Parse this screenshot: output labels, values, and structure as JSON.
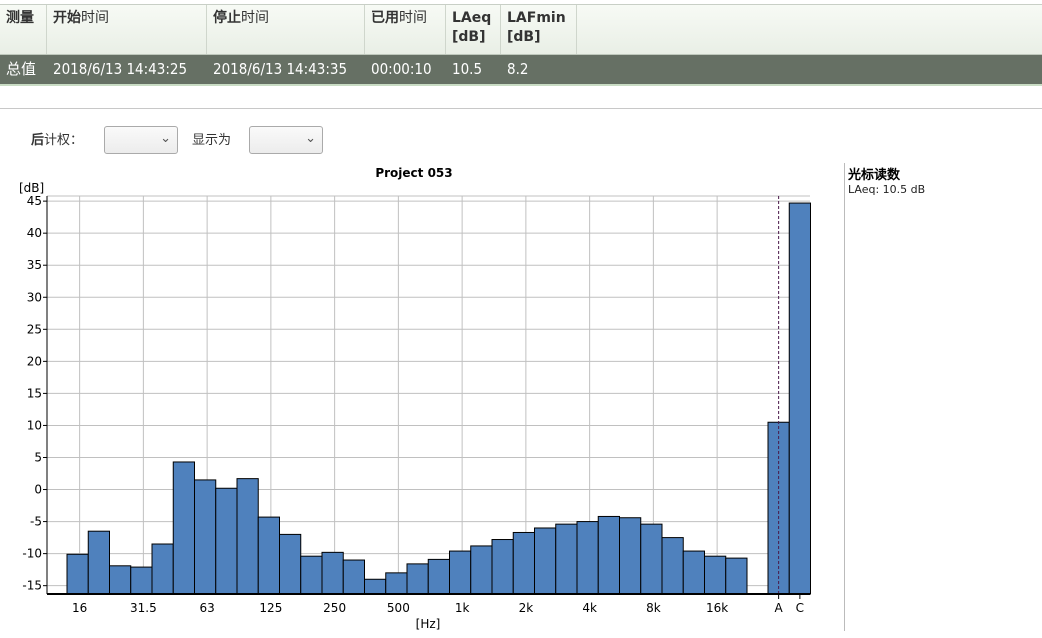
{
  "table": {
    "headers": [
      {
        "bold": "测量",
        "rest": ""
      },
      {
        "bold": "开始",
        "rest": "时间"
      },
      {
        "bold": "停止",
        "rest": "时间"
      },
      {
        "bold": "已用",
        "rest": "时间"
      },
      {
        "bold": "LAeq [dB]",
        "rest": ""
      },
      {
        "bold": "LAFmin [dB]",
        "rest": ""
      }
    ],
    "rows": [
      [
        "总值",
        "2018/6/13 14:43:25",
        "2018/6/13 14:43:35",
        "00:00:10",
        "10.5",
        "8.2"
      ]
    ]
  },
  "controls": {
    "weighting_label_bold": "后",
    "weighting_label": "计权：",
    "weighting_value": "",
    "display_label": "显示为",
    "display_value": ""
  },
  "cursor_panel": {
    "title": "光标读数",
    "reading": "LAeq: 10.5 dB"
  },
  "chart_data": {
    "type": "bar",
    "title": "Project 053",
    "xlabel": "[Hz]",
    "ylabel": "[dB]",
    "ylim": [
      -16.3,
      45.8
    ],
    "yticks": [
      45,
      40,
      35,
      30,
      25,
      20,
      15,
      10,
      5,
      0,
      -5,
      -10,
      -15
    ],
    "bands": [
      "16",
      "20",
      "25",
      "31.5",
      "40",
      "50",
      "63",
      "80",
      "100",
      "125",
      "160",
      "200",
      "250",
      "315",
      "400",
      "500",
      "630",
      "800",
      "1k",
      "1.25k",
      "1.6k",
      "2k",
      "2.5k",
      "3.15k",
      "4k",
      "5k",
      "6.3k",
      "8k",
      "10k",
      "12.5k",
      "16k",
      "20k"
    ],
    "xtick_labels": [
      "16",
      "31.5",
      "63",
      "125",
      "250",
      "500",
      "1k",
      "2k",
      "4k",
      "8k",
      "16k"
    ],
    "values": [
      -10.1,
      -6.5,
      -11.9,
      -12.1,
      -8.5,
      4.3,
      1.5,
      0.2,
      1.7,
      -4.3,
      -7.0,
      -10.4,
      -9.8,
      -11.0,
      -14.0,
      -13.0,
      -11.6,
      -10.9,
      -9.6,
      -8.8,
      -7.8,
      -6.7,
      -6.0,
      -5.4,
      -5.0,
      -4.2,
      -4.4,
      -5.4,
      -7.5,
      -9.6,
      -10.4,
      -10.7
    ],
    "broadband": [
      {
        "label": "A",
        "value": 10.5
      },
      {
        "label": "C",
        "value": 44.7
      }
    ],
    "cursor": "A",
    "grid": true,
    "bar_color": "#4f81bd"
  }
}
